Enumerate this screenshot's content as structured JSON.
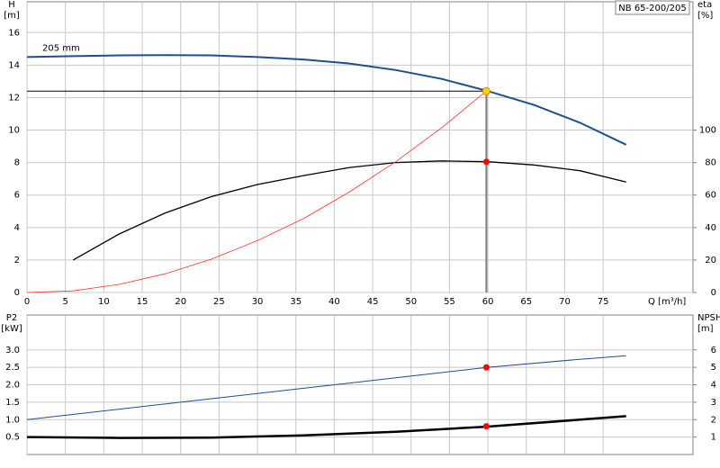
{
  "chart_data": [
    {
      "type": "line",
      "y_label": "H",
      "y_unit": "[m]",
      "y2_label": "eta",
      "y2_unit": "[%]",
      "x_label": "Q [m³/h]",
      "model": "NB 65-200/205",
      "xlim": [
        0,
        86.7
      ],
      "xticks": [
        0,
        5,
        10,
        15,
        20,
        25,
        30,
        35,
        40,
        45,
        50,
        55,
        60,
        65,
        70,
        75
      ],
      "ylim": [
        0,
        17.9
      ],
      "yticks": [
        0,
        2,
        4,
        6,
        8,
        10,
        12,
        14,
        16
      ],
      "y2lim": [
        0,
        179
      ],
      "y2ticks": [
        0,
        20,
        40,
        60,
        80,
        100
      ],
      "grid": true,
      "series": [
        {
          "name": "205 mm",
          "color": "#1f4e8c",
          "x": [
            0,
            6,
            12,
            18,
            24,
            30,
            36,
            42,
            48,
            54,
            60,
            66,
            72,
            78
          ],
          "values": [
            14.5,
            14.55,
            14.6,
            14.62,
            14.6,
            14.5,
            14.35,
            14.1,
            13.7,
            13.15,
            12.4,
            11.55,
            10.45,
            9.1
          ]
        },
        {
          "color": "#000000",
          "axis": "y2",
          "x": [
            6,
            12,
            18,
            24,
            30,
            36,
            42,
            48,
            54,
            60,
            66,
            72,
            78
          ],
          "values": [
            20,
            36,
            49,
            59,
            66.5,
            72,
            77,
            80,
            81,
            80.5,
            78.5,
            75,
            68
          ]
        },
        {
          "color": "#ff3030",
          "x": [
            0,
            6,
            12,
            18,
            24,
            30,
            36,
            42,
            48,
            54,
            59.8
          ],
          "values": [
            0,
            0.1,
            0.5,
            1.15,
            2.05,
            3.2,
            4.55,
            6.2,
            8.05,
            10.15,
            12.4
          ]
        }
      ],
      "operating_point": {
        "Q": 59.8,
        "H": 12.4,
        "eta": 80.5
      }
    },
    {
      "type": "line",
      "y_label": "P2",
      "y_unit": "[kW]",
      "y2_label": "NPSH",
      "y2_unit": "[m]",
      "ylim": [
        0,
        4
      ],
      "yticks": [
        0.5,
        {
          "value": 1.0,
          "label": "1.0"
        },
        1.5,
        {
          "value": 2.0,
          "label": "2.0"
        },
        2.5,
        {
          "value": 3.0,
          "label": "3.0"
        }
      ],
      "y2lim": [
        0,
        8
      ],
      "y2ticks": [
        1,
        2,
        3,
        4,
        5,
        6
      ],
      "grid": true,
      "series": [
        {
          "color": "#1f4e8c",
          "x": [
            0,
            12,
            24,
            36,
            48,
            60,
            72,
            78
          ],
          "values": [
            1.0,
            1.3,
            1.6,
            1.9,
            2.2,
            2.5,
            2.73,
            2.83
          ]
        },
        {
          "color": "#000000",
          "axis": "y2",
          "x": [
            0,
            12,
            24,
            36,
            48,
            60,
            72,
            78
          ],
          "values": [
            1.0,
            0.95,
            0.97,
            1.1,
            1.3,
            1.6,
            2.0,
            2.2
          ]
        }
      ],
      "operating_point": {
        "Q": 59.8,
        "P2": 2.5,
        "NPSH": 1.62
      }
    }
  ]
}
